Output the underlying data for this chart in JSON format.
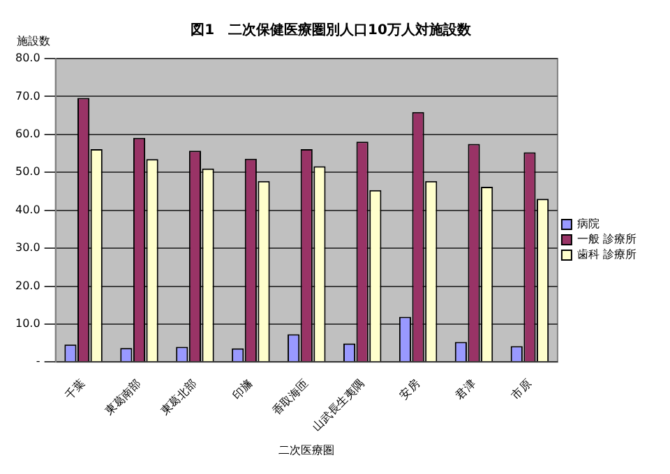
{
  "chart_data": {
    "type": "bar",
    "title": "図1　二次保健医療圏別人口10万人対施設数",
    "xlabel": "二次医療圏",
    "ylabel": "施設数",
    "categories": [
      "千葉",
      "東葛南部",
      "東葛北部",
      "印旛",
      "香取海匝",
      "山武長生夷隅",
      "安房",
      "君津",
      "市原"
    ],
    "series": [
      {
        "name": "病院",
        "color": "#9999ff",
        "values": [
          4.6,
          3.7,
          4.0,
          3.6,
          7.3,
          4.9,
          11.9,
          5.3,
          4.2
        ]
      },
      {
        "name": "一般 診療所",
        "color": "#993366",
        "values": [
          69.6,
          59.1,
          55.7,
          53.6,
          56.1,
          58.1,
          65.9,
          57.5,
          55.3
        ]
      },
      {
        "name": "歯科 診療所",
        "color": "#ffffcc",
        "values": [
          56.1,
          53.5,
          51.0,
          47.7,
          51.6,
          45.3,
          47.7,
          46.2,
          43.0
        ]
      }
    ],
    "ylim": [
      0,
      80
    ],
    "yticks": [
      {
        "value": 0,
        "label": "-"
      },
      {
        "value": 10,
        "label": "10.0"
      },
      {
        "value": 20,
        "label": "20.0"
      },
      {
        "value": 30,
        "label": "30.0"
      },
      {
        "value": 40,
        "label": "40.0"
      },
      {
        "value": 50,
        "label": "50.0"
      },
      {
        "value": 60,
        "label": "60.0"
      },
      {
        "value": 70,
        "label": "70.0"
      },
      {
        "value": 80,
        "label": "80.0"
      }
    ],
    "grid": "y",
    "legend": "right"
  }
}
